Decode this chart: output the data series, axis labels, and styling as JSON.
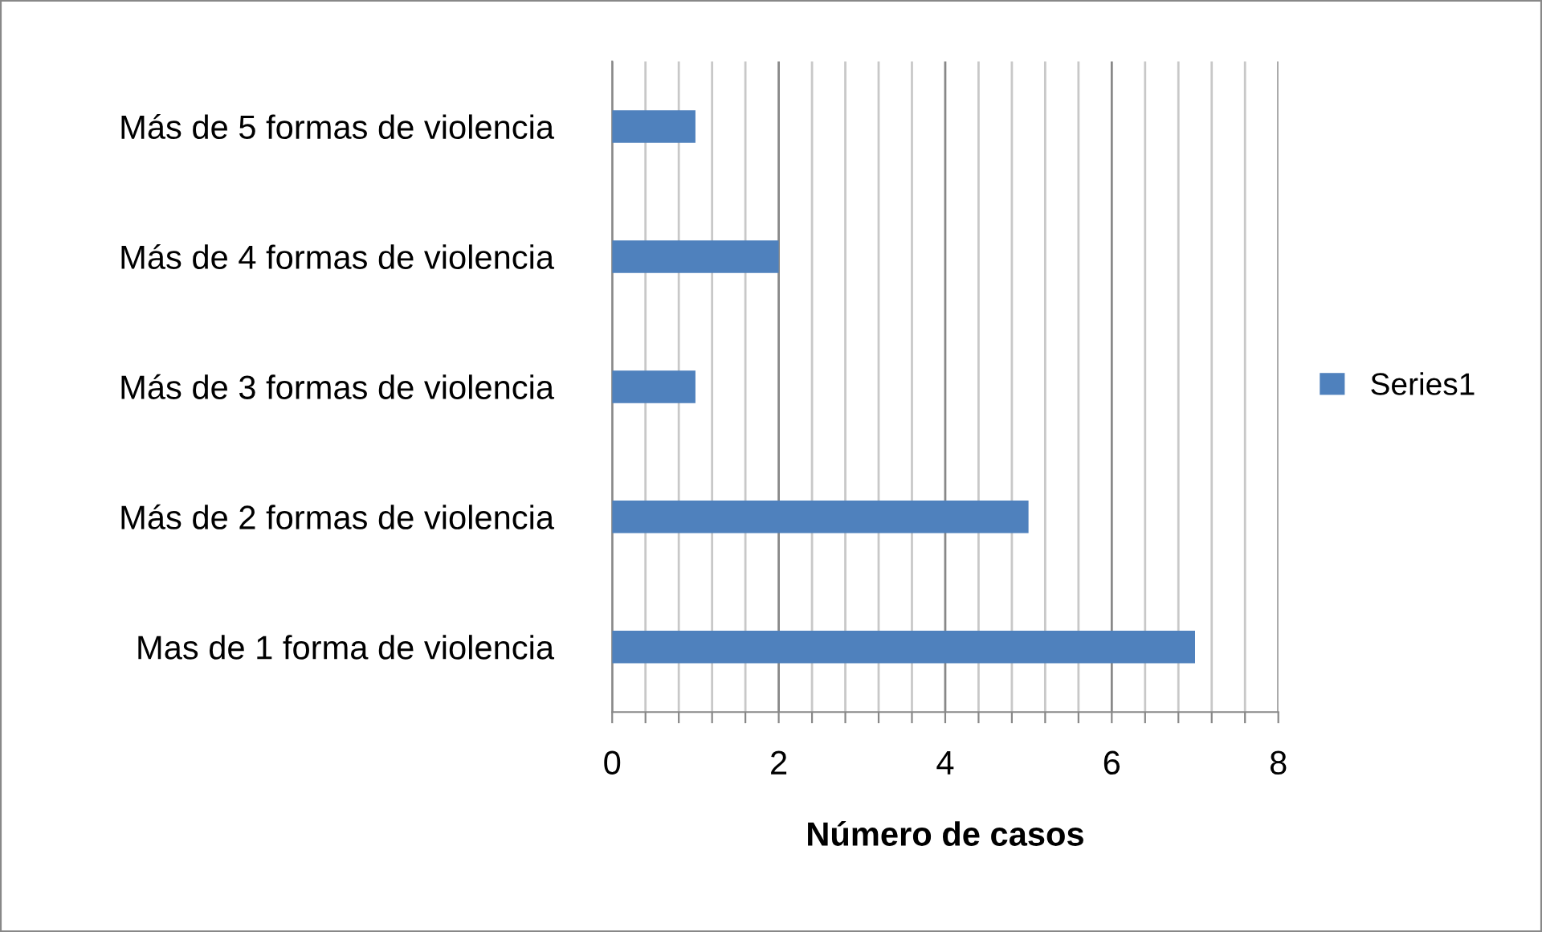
{
  "chart_data": {
    "type": "bar",
    "orientation": "horizontal",
    "xlabel": "Número de casos",
    "categories": [
      "Más de 5 formas de violencia",
      "Más de 4 formas de violencia",
      "Más de 3 formas de violencia",
      "Más de 2 formas de violencia",
      "Mas de 1 forma de violencia"
    ],
    "series": [
      {
        "name": "Series1",
        "color": "#4f81bd",
        "values": [
          1,
          2,
          1,
          5,
          7
        ]
      }
    ],
    "xlim": [
      0,
      8
    ],
    "xticks": [
      0,
      {
        "value": 0.4,
        "label": null
      },
      {
        "value": 0.8,
        "label": null
      },
      {
        "value": 1.2,
        "label": null
      },
      {
        "value": 1.6,
        "label": null
      },
      2,
      {
        "value": 2.4,
        "label": null
      },
      {
        "value": 2.8,
        "label": null
      },
      {
        "value": 3.2,
        "label": null
      },
      {
        "value": 3.6,
        "label": null
      },
      4,
      {
        "value": 4.4,
        "label": null
      },
      {
        "value": 4.8,
        "label": null
      },
      {
        "value": 5.2,
        "label": null
      },
      {
        "value": 5.6,
        "label": null
      },
      6,
      {
        "value": 6.4,
        "label": null
      },
      {
        "value": 6.8,
        "label": null
      },
      {
        "value": 7.2,
        "label": null
      },
      {
        "value": 7.6,
        "label": null
      },
      8
    ],
    "grid": "x",
    "legend": "right"
  }
}
